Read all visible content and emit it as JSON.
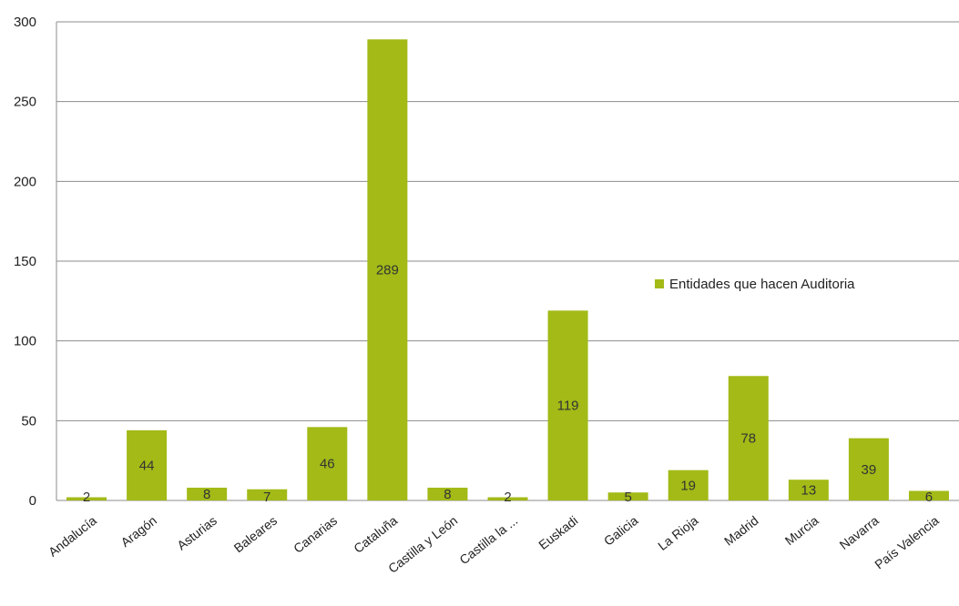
{
  "chart_data": {
    "type": "bar",
    "categories": [
      "Andalucía",
      "Aragón",
      "Asturias",
      "Baleares",
      "Canarias",
      "Cataluña",
      "Castilla y León",
      "Castilla la ...",
      "Euskadi",
      "Galicia",
      "La Rioja",
      "Madrid",
      "Murcia",
      "Navarra",
      "País Valencia"
    ],
    "series": [
      {
        "name": "Entidades que hacen Auditoria",
        "values": [
          2,
          44,
          8,
          7,
          46,
          289,
          8,
          2,
          119,
          5,
          19,
          78,
          13,
          39,
          6
        ],
        "color": "#a3ba17"
      }
    ],
    "ylim": [
      0,
      300
    ],
    "yticks": [
      0,
      50,
      100,
      150,
      200,
      250,
      300
    ],
    "xlabel": "",
    "ylabel": "",
    "grid": true,
    "legend_position": "right",
    "colors": {
      "bar": "#a3ba17",
      "grid": "#8c8c8c",
      "text": "#222222"
    }
  }
}
